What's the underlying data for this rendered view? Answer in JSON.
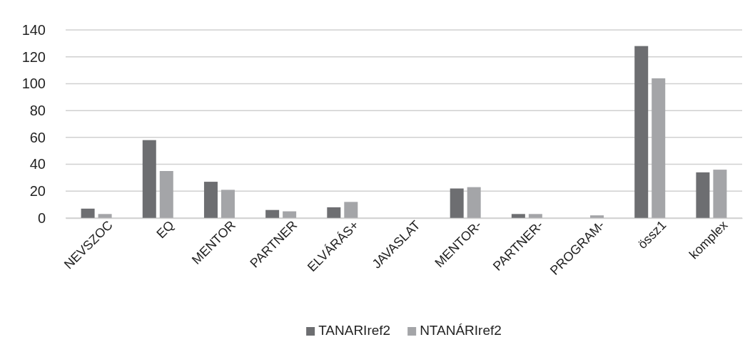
{
  "chart_data": {
    "type": "bar",
    "categories": [
      "NEVSZOC",
      "EQ",
      "MENTOR",
      "PARTNER",
      "ELVÁRÁS+",
      "JAVASLAT",
      "MENTOR-",
      "PARTNER-",
      "PROGRAM-",
      "össz1",
      "komplex"
    ],
    "series": [
      {
        "name": "TANARIref2",
        "color": "#6d6e71",
        "values": [
          7,
          58,
          27,
          6,
          8,
          0,
          22,
          3,
          0,
          128,
          34
        ]
      },
      {
        "name": "NTANÁRIref2",
        "color": "#a4a5a8",
        "values": [
          3,
          35,
          21,
          5,
          12,
          0,
          23,
          3,
          2,
          104,
          36
        ]
      }
    ],
    "ylim": [
      0,
      140
    ],
    "yticks": [
      0,
      20,
      40,
      60,
      80,
      100,
      120,
      140
    ],
    "grid": "y",
    "legend": "bottom"
  }
}
